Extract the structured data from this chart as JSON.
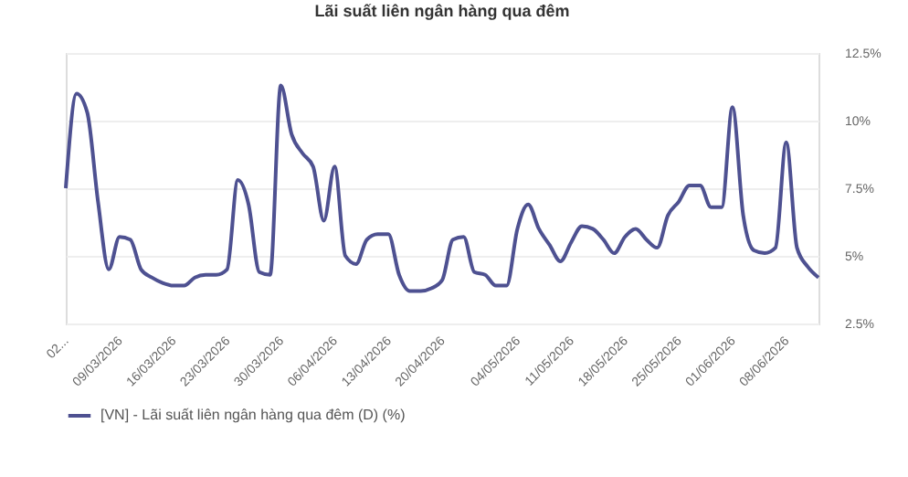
{
  "chart_data": {
    "type": "line",
    "title": "Lãi suất liên ngân hàng qua đêm",
    "categories": [
      "02...",
      null,
      null,
      null,
      null,
      "09/03/2026",
      null,
      null,
      null,
      null,
      "16/03/2026",
      null,
      null,
      null,
      null,
      "23/03/2026",
      null,
      null,
      null,
      null,
      "30/03/2026",
      null,
      null,
      null,
      null,
      "06/04/2026",
      null,
      null,
      null,
      null,
      "13/04/2026",
      null,
      null,
      null,
      null,
      "20/04/2026",
      null,
      null,
      null,
      null,
      null,
      null,
      "04/05/2026",
      null,
      null,
      null,
      null,
      "11/05/2026",
      null,
      null,
      null,
      null,
      "18/05/2026",
      null,
      null,
      null,
      null,
      "25/05/2026",
      null,
      null,
      null,
      null,
      "01/06/2026",
      null,
      null,
      null,
      null,
      "08/06/2026",
      null,
      null,
      null
    ],
    "series": [
      {
        "name": "[VN] - Lãi suất liên ngân hàng qua đêm (D) (%)",
        "color": "#4e5191",
        "values": [
          7.5,
          11.0,
          10.3,
          7.0,
          4.5,
          5.7,
          5.6,
          4.5,
          4.2,
          4.0,
          3.9,
          3.9,
          4.2,
          4.3,
          4.3,
          4.5,
          7.8,
          6.9,
          4.4,
          4.3,
          11.3,
          9.5,
          8.8,
          8.3,
          6.3,
          8.3,
          5.0,
          4.7,
          5.6,
          5.8,
          5.8,
          4.3,
          3.7,
          3.7,
          3.8,
          4.1,
          5.6,
          5.7,
          4.4,
          4.3,
          3.9,
          3.9,
          6.0,
          6.9,
          6.0,
          5.4,
          4.8,
          5.5,
          6.1,
          6.0,
          5.6,
          5.1,
          5.7,
          6.0,
          5.6,
          5.3,
          6.5,
          7.0,
          7.6,
          7.6,
          6.8,
          6.8,
          10.5,
          6.5,
          5.2,
          5.1,
          5.3,
          9.2,
          5.3,
          4.6,
          4.2
        ]
      }
    ],
    "ylim": [
      2.5,
      12.5
    ],
    "yticks": [
      {
        "value": 2.5,
        "label": "2.5%"
      },
      {
        "value": 5,
        "label": "5%"
      },
      {
        "value": 7.5,
        "label": "7.5%"
      },
      {
        "value": 10,
        "label": "10%"
      },
      {
        "value": 12.5,
        "label": "12.5%"
      }
    ],
    "grid": "y",
    "legend": "bottom",
    "marker": "none",
    "line_style": "solid"
  }
}
